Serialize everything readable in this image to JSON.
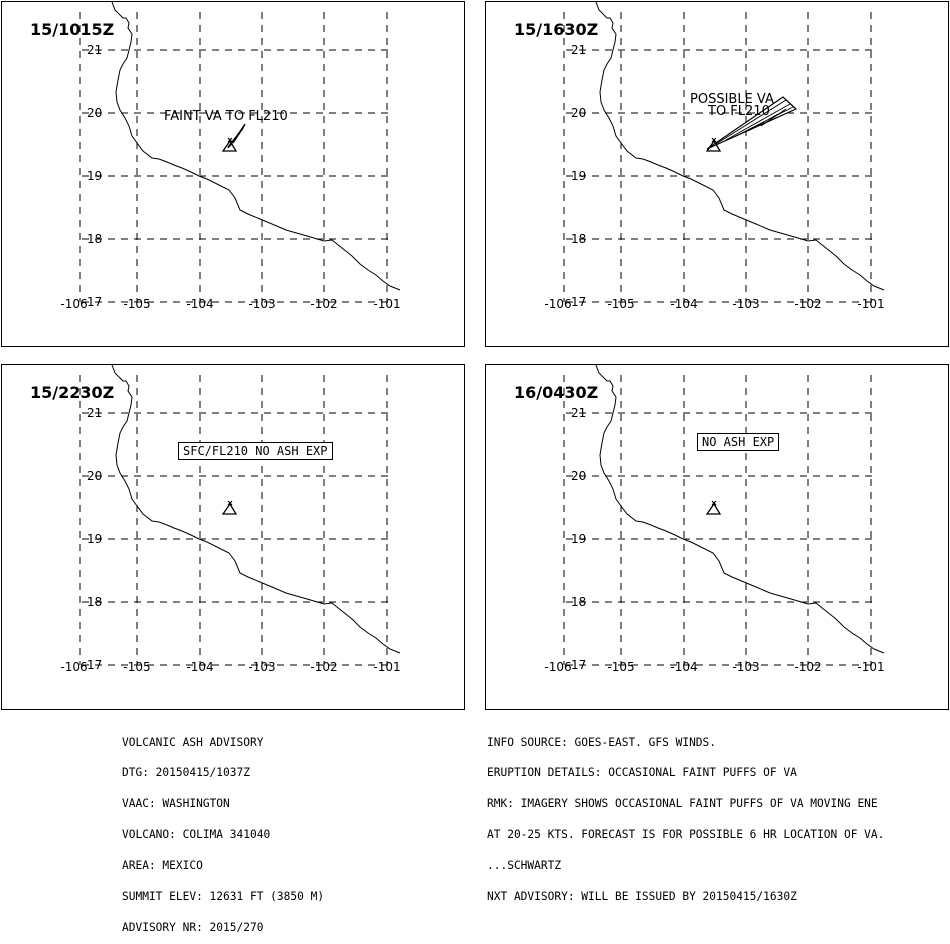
{
  "panels": [
    {
      "time": "15/1015Z",
      "note_text": "FAINT VA TO FL210",
      "note_lines": [],
      "box_text": ""
    },
    {
      "time": "15/1630Z",
      "note_text": "",
      "note_lines": [
        "POSSIBLE VA",
        "TO FL210"
      ],
      "box_text": ""
    },
    {
      "time": "15/2230Z",
      "note_text": "",
      "note_lines": [],
      "box_text": "SFC/FL210 NO ASH EXP"
    },
    {
      "time": "16/0430Z",
      "note_text": "",
      "note_lines": [],
      "box_text": "NO ASH EXP"
    }
  ],
  "map": {
    "lat_labels": [
      "21",
      "20",
      "19",
      "18",
      "17"
    ],
    "lon_labels": [
      "-106",
      "-105",
      "-104",
      "-103",
      "-102",
      "-101"
    ]
  },
  "footer_left": [
    "VOLCANIC ASH ADVISORY",
    "DTG: 20150415/1037Z",
    "VAAC: WASHINGTON",
    "VOLCANO: COLIMA 341040",
    "AREA: MEXICO",
    "SUMMIT ELEV: 12631 FT (3850 M)",
    "ADVISORY NR: 2015/270"
  ],
  "footer_right": [
    "INFO SOURCE: GOES-EAST. GFS WINDS.",
    "ERUPTION DETAILS: OCCASIONAL FAINT PUFFS OF VA",
    "RMK: IMAGERY SHOWS OCCASIONAL FAINT PUFFS OF VA MOVING ENE",
    "AT 20-25 KTS. FORECAST IS FOR POSSIBLE 6 HR LOCATION OF VA.",
    "...SCHWARTZ",
    "NXT ADVISORY: WILL BE ISSUED BY 20150415/1630Z"
  ]
}
